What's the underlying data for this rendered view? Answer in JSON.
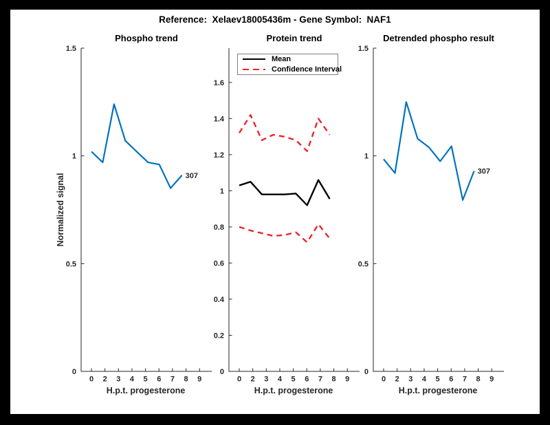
{
  "figure": {
    "title": "Reference:  Xelaev18005436m - Gene Symbol:  NAF1"
  },
  "legend": {
    "mean": "Mean",
    "ci": "Confidence Interval"
  },
  "colors": {
    "blue": "#0072BD",
    "red": "#E9252C",
    "black": "#000000",
    "axis": "#262626"
  },
  "chart_data": [
    {
      "type": "line",
      "title": "Phospho trend",
      "xlabel": "H.p.t. progesterone",
      "ylabel": "Normalized signal",
      "x_tick_labels": [
        "0",
        "2",
        "3",
        "4",
        "5",
        "6",
        "7",
        "8",
        "9"
      ],
      "ylim": [
        0,
        1.5
      ],
      "y_ticks": [
        0,
        0.5,
        1,
        1.5
      ],
      "y_tick_labels": [
        "0",
        "0.5",
        "1",
        "1.5"
      ],
      "grid": false,
      "series": [
        {
          "name": "phospho-trend",
          "color": "#0072BD",
          "dash": null,
          "width": 2.2,
          "values": [
            1.02,
            0.97,
            1.24,
            1.07,
            1.02,
            0.97,
            0.96,
            0.85,
            0.91
          ]
        }
      ],
      "end_label": "307"
    },
    {
      "type": "line",
      "title": "Protein trend",
      "xlabel": "H.p.t. progesterone",
      "ylabel": "",
      "x_tick_labels": [
        "0",
        "2",
        "3",
        "4",
        "5",
        "6",
        "7",
        "8",
        "9"
      ],
      "ylim": [
        0,
        1.79
      ],
      "y_ticks": [
        0,
        0.2,
        0.4,
        0.6,
        0.8,
        1,
        1.2,
        1.4,
        1.6
      ],
      "y_tick_labels": [
        "0",
        "0.2",
        "0.4",
        "0.6",
        "0.8",
        "1",
        "1.2",
        "1.4",
        "1.6"
      ],
      "grid": false,
      "legend": {
        "mean": "Mean",
        "ci": "Confidence Interval"
      },
      "legend_position": "north",
      "series": [
        {
          "name": "ci-upper",
          "color": "#E9252C",
          "dash": "8 6",
          "width": 2.4,
          "values": [
            1.32,
            1.42,
            1.28,
            1.31,
            1.3,
            1.28,
            1.22,
            1.4,
            1.31
          ]
        },
        {
          "name": "ci-lower",
          "color": "#E9252C",
          "dash": "8 6",
          "width": 2.4,
          "values": [
            0.8,
            0.78,
            0.765,
            0.75,
            0.755,
            0.77,
            0.715,
            0.815,
            0.735
          ]
        },
        {
          "name": "mean",
          "color": "#000000",
          "dash": null,
          "width": 2.4,
          "values": [
            1.03,
            1.05,
            0.98,
            0.98,
            0.98,
            0.985,
            0.92,
            1.06,
            0.955
          ]
        }
      ],
      "end_label": null
    },
    {
      "type": "line",
      "title": "Detrended phospho result",
      "xlabel": "H.p.t. progesterone",
      "ylabel": "",
      "x_tick_labels": [
        "0",
        "2",
        "3",
        "4",
        "5",
        "6",
        "7",
        "8",
        "9"
      ],
      "ylim": [
        0,
        1.5
      ],
      "y_ticks": [
        0,
        0.5,
        1,
        1.5
      ],
      "y_tick_labels": [
        "0",
        "0.5",
        "1",
        "1.5"
      ],
      "grid": false,
      "series": [
        {
          "name": "detrended-phospho",
          "color": "#0072BD",
          "dash": null,
          "width": 2.2,
          "values": [
            0.985,
            0.92,
            1.25,
            1.08,
            1.04,
            0.975,
            1.045,
            0.795,
            0.93
          ]
        }
      ],
      "end_label": "307"
    }
  ]
}
